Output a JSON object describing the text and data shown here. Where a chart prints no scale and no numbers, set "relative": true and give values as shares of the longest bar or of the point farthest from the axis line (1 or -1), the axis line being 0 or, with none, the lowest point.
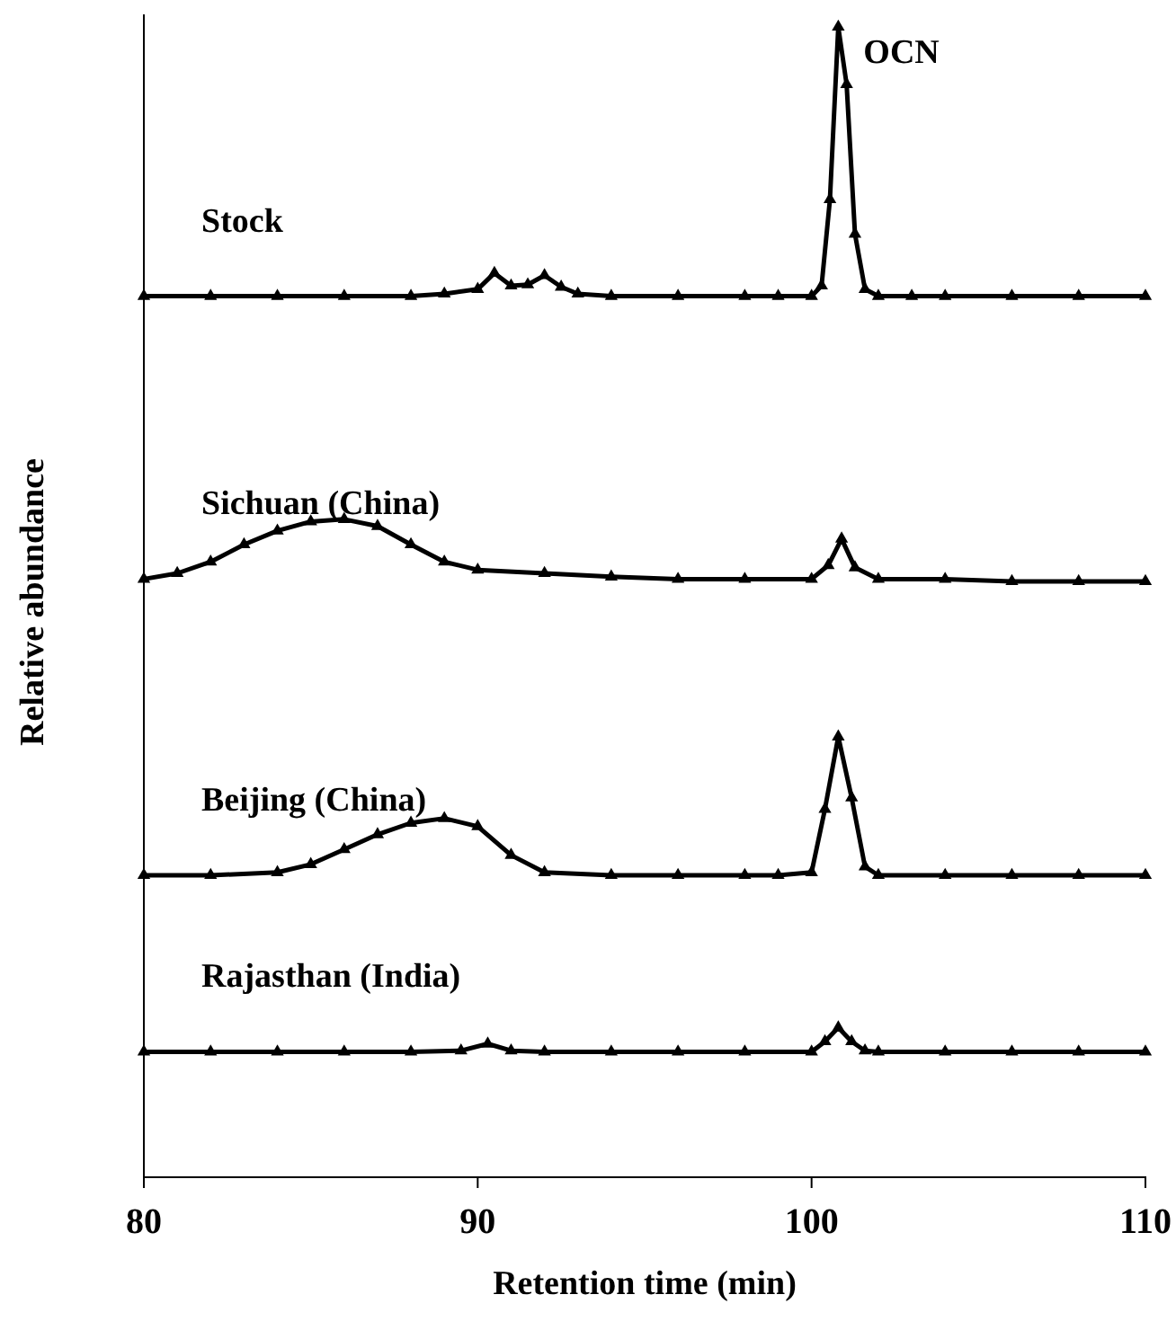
{
  "chart_data": {
    "type": "line",
    "relative": true,
    "xlabel": "Retention time (min)",
    "ylabel": "Relative abundance",
    "xlim": [
      80,
      110
    ],
    "xticks": [
      80,
      90,
      100,
      110
    ],
    "tick_labels": "x",
    "marker": "triangle",
    "grid": false,
    "legend": false,
    "annotations": [
      {
        "text": "OCN",
        "x": 100.8,
        "y": 1.0
      }
    ],
    "series": [
      {
        "name": "Stock",
        "color": "#000000",
        "x": [
          80,
          82,
          84,
          86,
          88,
          89,
          90,
          90.5,
          91,
          91.5,
          92,
          92.5,
          93,
          94,
          96,
          98,
          99,
          100,
          100.3,
          100.55,
          100.8,
          101.05,
          101.3,
          101.6,
          102,
          103,
          104,
          106,
          108,
          110
        ],
        "values": [
          0.766,
          0.766,
          0.766,
          0.766,
          0.766,
          0.768,
          0.772,
          0.786,
          0.775,
          0.776,
          0.784,
          0.774,
          0.768,
          0.766,
          0.766,
          0.766,
          0.766,
          0.766,
          0.775,
          0.85,
          1.0,
          0.95,
          0.82,
          0.772,
          0.766,
          0.766,
          0.766,
          0.766,
          0.766,
          0.766
        ]
      },
      {
        "name": "Sichuan (China)",
        "color": "#000000",
        "x": [
          80,
          81,
          82,
          83,
          84,
          85,
          86,
          87,
          88,
          89,
          90,
          92,
          94,
          96,
          98,
          100,
          100.5,
          100.9,
          101.3,
          102,
          104,
          106,
          108,
          110
        ],
        "values": [
          0.52,
          0.525,
          0.535,
          0.55,
          0.562,
          0.57,
          0.572,
          0.566,
          0.55,
          0.535,
          0.528,
          0.525,
          0.522,
          0.52,
          0.52,
          0.52,
          0.532,
          0.555,
          0.53,
          0.52,
          0.52,
          0.518,
          0.518,
          0.518
        ]
      },
      {
        "name": "Beijing (China)",
        "color": "#000000",
        "x": [
          80,
          82,
          84,
          85,
          86,
          87,
          88,
          89,
          90,
          91,
          92,
          94,
          96,
          98,
          99,
          100,
          100.4,
          100.8,
          101.2,
          101.6,
          102,
          104,
          106,
          108,
          110
        ],
        "values": [
          0.2625,
          0.2625,
          0.265,
          0.272,
          0.285,
          0.298,
          0.308,
          0.312,
          0.305,
          0.28,
          0.265,
          0.2625,
          0.2625,
          0.2625,
          0.2625,
          0.265,
          0.32,
          0.383,
          0.33,
          0.27,
          0.2625,
          0.2625,
          0.2625,
          0.2625,
          0.2625
        ]
      },
      {
        "name": "Rajasthan (India)",
        "color": "#000000",
        "x": [
          80,
          82,
          84,
          86,
          88,
          89.5,
          90.3,
          91,
          92,
          94,
          96,
          98,
          100,
          100.4,
          100.8,
          101.2,
          101.6,
          102,
          104,
          106,
          108,
          110
        ],
        "values": [
          0.109,
          0.109,
          0.109,
          0.109,
          0.109,
          0.11,
          0.116,
          0.11,
          0.109,
          0.109,
          0.109,
          0.109,
          0.109,
          0.118,
          0.13,
          0.118,
          0.11,
          0.109,
          0.109,
          0.109,
          0.109,
          0.109
        ]
      }
    ]
  }
}
